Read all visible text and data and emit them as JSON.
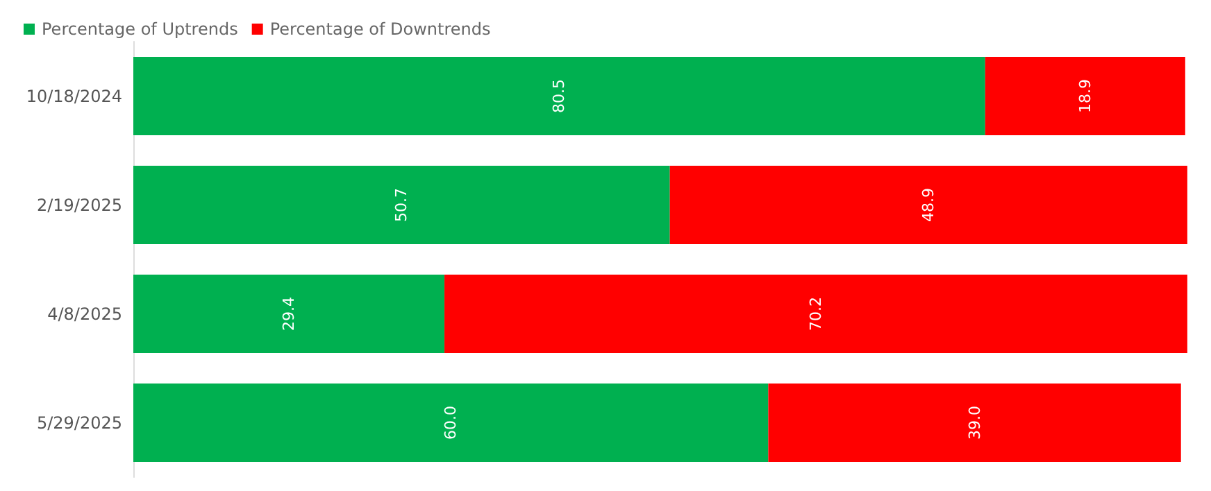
{
  "chart_data": {
    "type": "bar",
    "orientation": "horizontal",
    "stacked": true,
    "categories": [
      "10/18/2024",
      "2/19/2025",
      "4/8/2025",
      "5/29/2025"
    ],
    "series": [
      {
        "name": "Percentage of Uptrends",
        "color": "#00b050",
        "values": [
          80.5,
          50.7,
          29.4,
          60.0
        ],
        "value_labels": [
          "80.5",
          "50.7",
          "29.4",
          "60.0"
        ]
      },
      {
        "name": "Percentage of Downtrends",
        "color": "#ff0000",
        "values": [
          18.9,
          48.9,
          70.2,
          39.0
        ],
        "value_labels": [
          "18.9",
          "48.9",
          "70.2",
          "39.0"
        ]
      }
    ],
    "xlim": [
      0,
      100
    ],
    "tick_labels": "y",
    "legend": "top left"
  }
}
